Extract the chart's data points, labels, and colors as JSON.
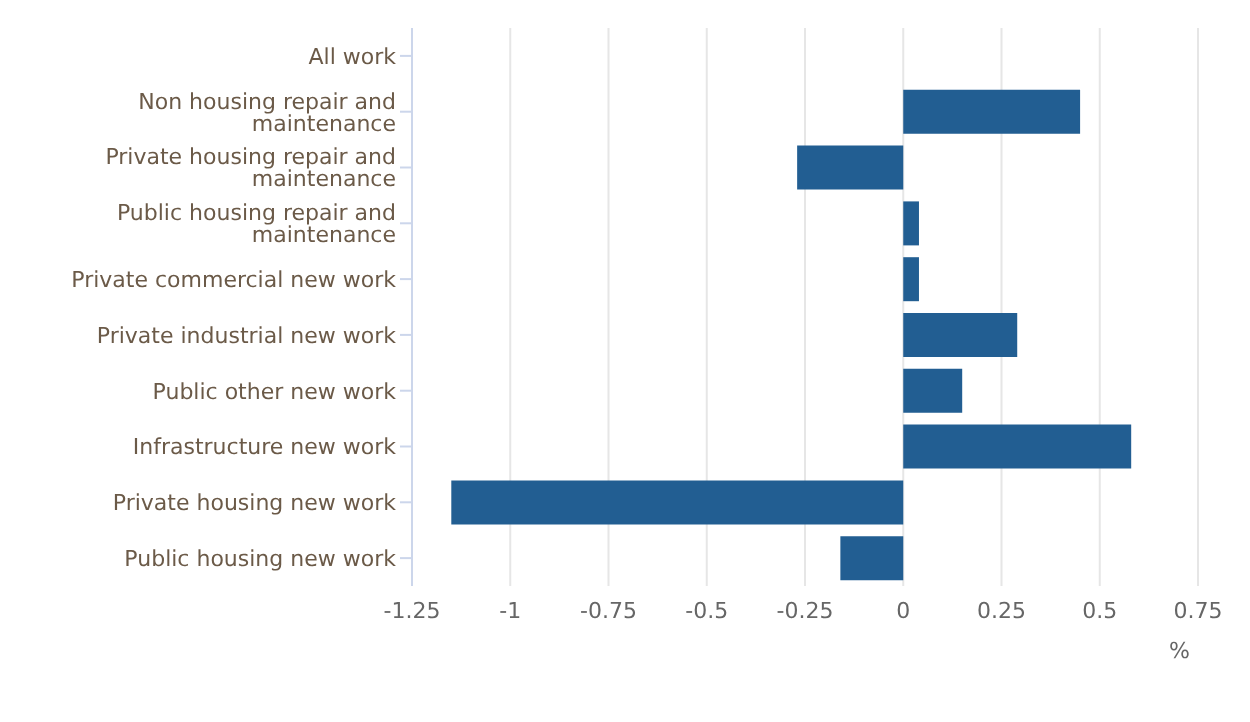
{
  "chart_data": {
    "type": "bar",
    "orientation": "horizontal",
    "xlabel": "%",
    "categories": [
      "All work",
      "Non housing repair and maintenance",
      "Private housing repair and maintenance",
      "Public housing repair and maintenance",
      "Private commercial new work",
      "Private industrial new work",
      "Public other new work",
      "Infrastructure new work",
      "Private housing new work",
      "Public housing new work"
    ],
    "values": [
      null,
      0.45,
      -0.27,
      0.04,
      0.04,
      0.29,
      0.15,
      0.58,
      -1.15,
      -0.16
    ],
    "color": "#225e92",
    "xlim": [
      -1.25,
      0.75
    ],
    "xticks": [
      -1.25,
      -1,
      -0.75,
      -0.5,
      -0.25,
      0,
      0.25,
      0.5,
      0.75
    ],
    "grid": "x",
    "legend": false
  }
}
